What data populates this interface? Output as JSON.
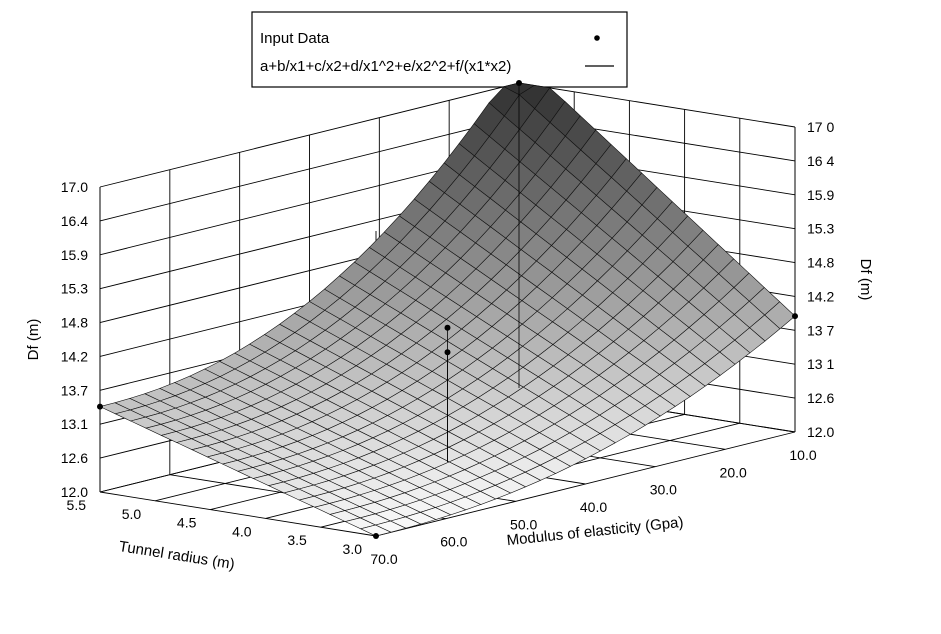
{
  "chart_data": {
    "type": "surface3d",
    "legend": {
      "placement": "top-center",
      "entries": [
        {
          "label": "Input Data",
          "marker": "point"
        },
        {
          "label": "a+b/x1+c/x2+d/x1^2+e/x2^2+f/(x1*x2)",
          "marker": "line"
        }
      ]
    },
    "x1_axis": {
      "label": "Tunnel radius (m)",
      "ticks": [
        "5.5",
        "5.0",
        "4.5",
        "4.0",
        "3.5",
        "3.0"
      ],
      "range": [
        3.0,
        5.5
      ]
    },
    "x2_axis": {
      "label": "Modulus of elasticity (Gpa)",
      "ticks": [
        "70.0",
        "60.0",
        "50.0",
        "40.0",
        "30.0",
        "20.0",
        "10.0"
      ],
      "range": [
        10.0,
        70.0
      ]
    },
    "z_axis": {
      "label": "Df (m)",
      "left_ticks": [
        "12.0",
        "12.6",
        "13.1",
        "13.7",
        "14.2",
        "14.8",
        "15.3",
        "15.9",
        "16.4",
        "17.0"
      ],
      "right_ticks": [
        "12.0",
        "12.6",
        "13 1",
        "13 7",
        "14.2",
        "14.8",
        "15.3",
        "15.9",
        "16 4",
        "17 0"
      ],
      "range": [
        12.0,
        17.0
      ]
    },
    "input_points": [
      {
        "x1": 5.5,
        "x2": 70.0,
        "z": 13.4
      },
      {
        "x1": 3.0,
        "x2": 70.0,
        "z": 12.0
      },
      {
        "x1": 3.0,
        "x2": 10.0,
        "z": 13.9
      },
      {
        "x1": 5.5,
        "x2": 10.0,
        "z": 17.0
      },
      {
        "x1": 4.25,
        "x2": 40.0,
        "z": 13.8
      },
      {
        "x1": 4.25,
        "x2": 40.0,
        "z": 14.2
      }
    ],
    "grid": true
  }
}
